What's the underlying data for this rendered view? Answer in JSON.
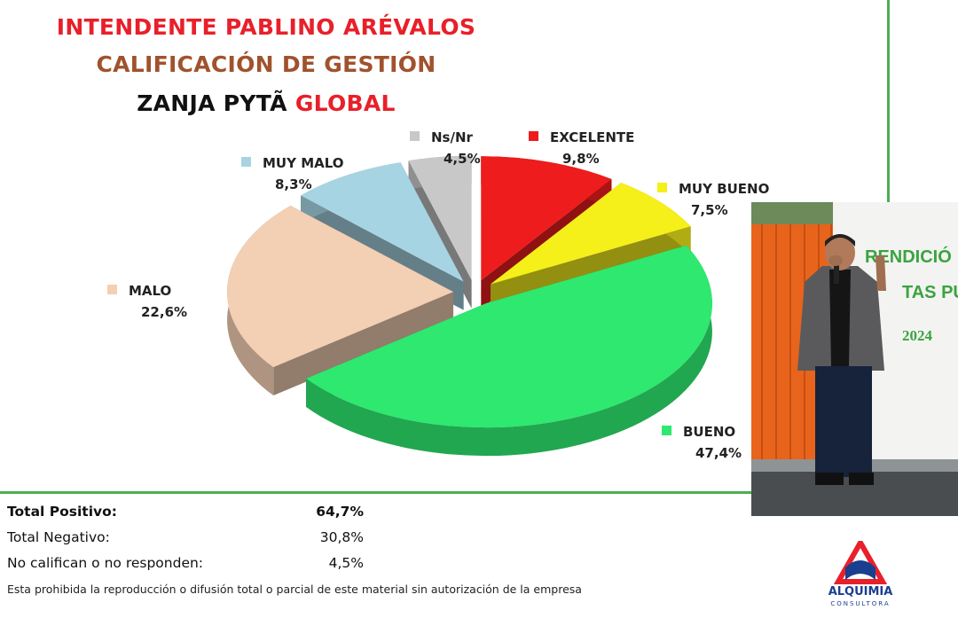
{
  "header": {
    "line1": "INTENDENTE PABLINO ARÉVALOS",
    "line2": "CALIFICACIÓN DE GESTIÓN",
    "line3_prefix": "ZANJA PYTÃ",
    "line3_highlight": "GLOBAL"
  },
  "chart_data": {
    "type": "pie",
    "style": "3d-exploded",
    "slices": [
      {
        "label": "EXCELENTE",
        "value": 9.8,
        "display": "9,8%",
        "color": "#ee1c1c"
      },
      {
        "label": "MUY BUENO",
        "value": 7.5,
        "display": "7,5%",
        "color": "#f5ef1a"
      },
      {
        "label": "BUENO",
        "value": 47.4,
        "display": "47,4%",
        "color": "#2ee86f"
      },
      {
        "label": "MALO",
        "value": 22.6,
        "display": "22,6%",
        "color": "#f3cfb3"
      },
      {
        "label": "MUY MALO",
        "value": 8.3,
        "display": "8,3%",
        "color": "#a6d4e2"
      },
      {
        "label": "Ns/Nr",
        "value": 4.5,
        "display": "4,5%",
        "color": "#c8c8c8"
      }
    ]
  },
  "totals": [
    {
      "label": "Total Positivo:",
      "value": "64,7%",
      "bold": true
    },
    {
      "label": "Total Negativo:",
      "value": "30,8%",
      "bold": false
    },
    {
      "label": "No califican o no responden:",
      "value": "4,5%",
      "bold": false
    }
  ],
  "disclaimer": "Esta prohibida la reproducción o difusión total o parcial de este material sin autorización de la empresa",
  "photo": {
    "banner_line1": "RENDICIÓ",
    "banner_line2": "TAS PÚ",
    "banner_year": "2024"
  },
  "logo": {
    "name": "ALQUIMIA",
    "sub": "CONSULTORA"
  }
}
